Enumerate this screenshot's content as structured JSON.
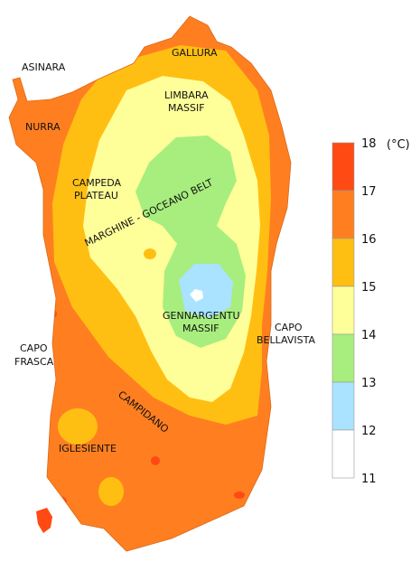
{
  "map": {
    "unit": "(°C)",
    "legend": [
      {
        "band": "17-18",
        "color": "#ff4a14"
      },
      {
        "band": "16-17",
        "color": "#ff7f20"
      },
      {
        "band": "15-16",
        "color": "#ffbf12"
      },
      {
        "band": "14-15",
        "color": "#ffff99"
      },
      {
        "band": "13-14",
        "color": "#a8ee7e"
      },
      {
        "band": "12-13",
        "color": "#a9e3ff"
      },
      {
        "band": "11-12",
        "color": "#ffffff"
      }
    ],
    "legend_ticks": [
      "18",
      "17",
      "16",
      "15",
      "14",
      "13",
      "12",
      "11"
    ],
    "places": {
      "asinara": "ASINARA",
      "gallura": "GALLURA",
      "limbara_1": "LIMBARA",
      "limbara_2": "MASSIF",
      "nurra": "NURRA",
      "campeda_1": "CAMPEDA",
      "campeda_2": "PLATEAU",
      "marghine": "MARGHINE - GOCEANO BELT",
      "gennargentu_1": "GENNARGENTU",
      "gennargentu_2": "MASSIF",
      "capo_bellavista_1": "CAPO",
      "capo_bellavista_2": "BELLAVISTA",
      "capo_frasca_1": "CAPO",
      "capo_frasca_2": "FRASCA",
      "campidano": "CAMPIDANO",
      "iglesiente": "IGLESIENTE"
    }
  }
}
